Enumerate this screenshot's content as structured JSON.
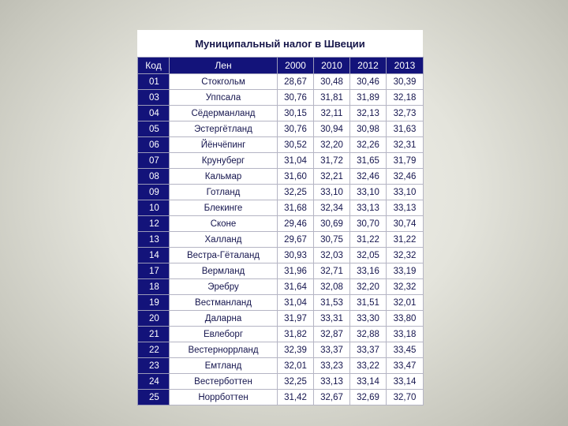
{
  "title": "Муниципальный налог в Швеции",
  "headers": [
    "Код",
    "Лен",
    "2000",
    "2010",
    "2012",
    "2013"
  ],
  "rows": [
    [
      "01",
      "Стокгольм",
      "28,67",
      "30,48",
      "30,46",
      "30,39"
    ],
    [
      "03",
      "Уппсала",
      "30,76",
      "31,81",
      "31,89",
      "32,18"
    ],
    [
      "04",
      "Сёдерманланд",
      "30,15",
      "32,11",
      "32,13",
      "32,73"
    ],
    [
      "05",
      "Эстергётланд",
      "30,76",
      "30,94",
      "30,98",
      "31,63"
    ],
    [
      "06",
      "Йёнчёпинг",
      "30,52",
      "32,20",
      "32,26",
      "32,31"
    ],
    [
      "07",
      "Крунуберг",
      "31,04",
      "31,72",
      "31,65",
      "31,79"
    ],
    [
      "08",
      "Кальмар",
      "31,60",
      "32,21",
      "32,46",
      "32,46"
    ],
    [
      "09",
      "Готланд",
      "32,25",
      "33,10",
      "33,10",
      "33,10"
    ],
    [
      "10",
      "Блекинге",
      "31,68",
      "32,34",
      "33,13",
      "33,13"
    ],
    [
      "12",
      "Сконе",
      "29,46",
      "30,69",
      "30,70",
      "30,74"
    ],
    [
      "13",
      "Халланд",
      "29,67",
      "30,75",
      "31,22",
      "31,22"
    ],
    [
      "14",
      "Вестра-Гёталанд",
      "30,93",
      "32,03",
      "32,05",
      "32,32"
    ],
    [
      "17",
      "Вермланд",
      "31,96",
      "32,71",
      "33,16",
      "33,19"
    ],
    [
      "18",
      "Эребру",
      "31,64",
      "32,08",
      "32,20",
      "32,32"
    ],
    [
      "19",
      "Вестманланд",
      "31,04",
      "31,53",
      "31,51",
      "32,01"
    ],
    [
      "20",
      "Даларна",
      "31,97",
      "33,31",
      "33,30",
      "33,80"
    ],
    [
      "21",
      "Евлеборг",
      "31,82",
      "32,87",
      "32,88",
      "33,18"
    ],
    [
      "22",
      "Вестерноррланд",
      "32,39",
      "33,37",
      "33,37",
      "33,45"
    ],
    [
      "23",
      "Емтланд",
      "32,01",
      "33,23",
      "33,22",
      "33,47"
    ],
    [
      "24",
      "Вестерботтен",
      "32,25",
      "33,13",
      "33,14",
      "33,14"
    ],
    [
      "25",
      "Норрботтен",
      "31,42",
      "32,67",
      "32,69",
      "32,70"
    ]
  ]
}
